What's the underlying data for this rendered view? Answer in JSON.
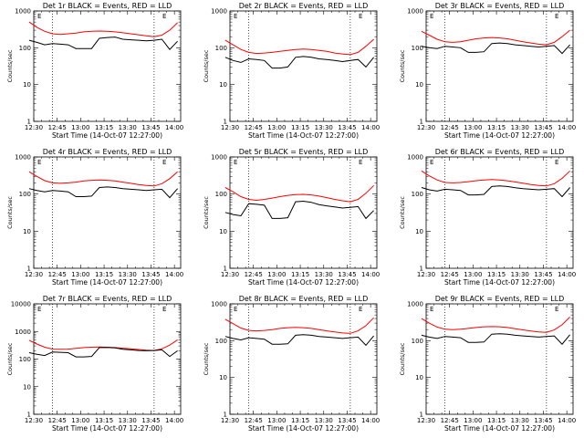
{
  "figure": {
    "event_color": "#000000",
    "lld_color": "#ff0000",
    "ylabel": "Counts/sec",
    "xlabel": "Start Time (14-Oct-07 12:27:00)",
    "xtick_labels": [
      "12:30",
      "12:45",
      "13:00",
      "13:15",
      "13:30",
      "13:45",
      "14:00"
    ],
    "ytick_labels": [
      "1",
      "10",
      "100",
      "1000"
    ],
    "marker_label": "E"
  },
  "chart_data": [
    {
      "type": "line",
      "title": "Det 1r BLACK = Events, RED = LLD",
      "xlabel": "Start Time (14-Oct-07 12:27:00)",
      "ylabel": "Counts/sec",
      "x_unit": "minutes after 12:27:00",
      "x": [
        0,
        5,
        10,
        15,
        20,
        25,
        30,
        35,
        40,
        45,
        50,
        55,
        60,
        65,
        70,
        75,
        80,
        85,
        90,
        95
      ],
      "xlim": [
        3,
        97
      ],
      "ylim": [
        1,
        1000
      ],
      "yscale": "log",
      "grid": false,
      "vlines_x": [
        15,
        80
      ],
      "series": [
        {
          "name": "LLD",
          "color": "#ff0000",
          "values": [
            500,
            360,
            280,
            240,
            230,
            240,
            250,
            270,
            280,
            285,
            280,
            270,
            255,
            240,
            225,
            210,
            200,
            220,
            300,
            480
          ]
        },
        {
          "name": "Events",
          "color": "#000000",
          "values": [
            160,
            140,
            120,
            130,
            125,
            120,
            95,
            95,
            95,
            180,
            190,
            195,
            170,
            165,
            160,
            155,
            160,
            170,
            90,
            150
          ]
        }
      ]
    },
    {
      "type": "line",
      "title": "Det 2r BLACK = Events, RED = LLD",
      "xlabel": "Start Time (14-Oct-07 12:27:00)",
      "ylabel": "Counts/sec",
      "x_unit": "minutes after 12:27:00",
      "x": [
        0,
        5,
        10,
        15,
        20,
        25,
        30,
        35,
        40,
        45,
        50,
        55,
        60,
        65,
        70,
        75,
        80,
        85,
        90,
        95
      ],
      "xlim": [
        3,
        97
      ],
      "ylim": [
        1,
        1000
      ],
      "yscale": "log",
      "grid": false,
      "vlines_x": [
        15,
        80
      ],
      "series": [
        {
          "name": "LLD",
          "color": "#ff0000",
          "values": [
            160,
            120,
            90,
            75,
            70,
            72,
            75,
            80,
            85,
            90,
            92,
            90,
            85,
            80,
            72,
            68,
            65,
            75,
            110,
            170
          ]
        },
        {
          "name": "Events",
          "color": "#000000",
          "values": [
            55,
            45,
            40,
            50,
            48,
            45,
            28,
            28,
            30,
            55,
            58,
            55,
            50,
            48,
            45,
            42,
            45,
            48,
            30,
            55
          ]
        }
      ]
    },
    {
      "type": "line",
      "title": "Det 3r BLACK = Events, RED = LLD",
      "xlabel": "Start Time (14-Oct-07 12:27:00)",
      "ylabel": "Counts/sec",
      "x_unit": "minutes after 12:27:00",
      "x": [
        0,
        5,
        10,
        15,
        20,
        25,
        30,
        35,
        40,
        45,
        50,
        55,
        60,
        65,
        70,
        75,
        80,
        85,
        90,
        95
      ],
      "xlim": [
        3,
        97
      ],
      "ylim": [
        1,
        1000
      ],
      "yscale": "log",
      "grid": false,
      "vlines_x": [
        15,
        80
      ],
      "series": [
        {
          "name": "LLD",
          "color": "#ff0000",
          "values": [
            280,
            220,
            170,
            145,
            140,
            145,
            160,
            175,
            185,
            190,
            185,
            175,
            160,
            145,
            135,
            125,
            120,
            140,
            200,
            300
          ]
        },
        {
          "name": "Events",
          "color": "#000000",
          "values": [
            110,
            100,
            95,
            110,
            105,
            100,
            75,
            75,
            78,
            130,
            135,
            130,
            120,
            115,
            110,
            105,
            110,
            115,
            70,
            120
          ]
        }
      ]
    },
    {
      "type": "line",
      "title": "Det 4r BLACK = Events, RED = LLD",
      "xlabel": "Start Time (14-Oct-07 12:27:00)",
      "ylabel": "Counts/sec",
      "x_unit": "minutes after 12:27:00",
      "x": [
        0,
        5,
        10,
        15,
        20,
        25,
        30,
        35,
        40,
        45,
        50,
        55,
        60,
        65,
        70,
        75,
        80,
        85,
        90,
        95
      ],
      "xlim": [
        3,
        97
      ],
      "ylim": [
        1,
        1000
      ],
      "yscale": "log",
      "grid": false,
      "vlines_x": [
        15,
        80
      ],
      "series": [
        {
          "name": "LLD",
          "color": "#ff0000",
          "values": [
            400,
            300,
            230,
            200,
            195,
            200,
            210,
            225,
            235,
            240,
            235,
            225,
            210,
            195,
            180,
            170,
            165,
            190,
            260,
            400
          ]
        },
        {
          "name": "Events",
          "color": "#000000",
          "values": [
            140,
            125,
            115,
            125,
            120,
            115,
            85,
            85,
            88,
            150,
            155,
            150,
            140,
            135,
            130,
            125,
            130,
            135,
            80,
            140
          ]
        }
      ]
    },
    {
      "type": "line",
      "title": "Det 5r BLACK = Events, RED = LLD",
      "xlabel": "Start Time (14-Oct-07 12:27:00)",
      "ylabel": "Counts/sec",
      "x_unit": "minutes after 12:27:00",
      "x": [
        0,
        5,
        10,
        15,
        20,
        25,
        30,
        35,
        40,
        45,
        50,
        55,
        60,
        65,
        70,
        75,
        80,
        85,
        90,
        95
      ],
      "xlim": [
        3,
        97
      ],
      "ylim": [
        1,
        1000
      ],
      "yscale": "log",
      "grid": false,
      "vlines_x": [
        15,
        80
      ],
      "series": [
        {
          "name": "LLD",
          "color": "#ff0000",
          "values": [
            150,
            115,
            85,
            72,
            68,
            72,
            78,
            85,
            92,
            97,
            98,
            95,
            88,
            80,
            72,
            66,
            62,
            72,
            105,
            170
          ]
        },
        {
          "name": "Events",
          "color": "#000000",
          "values": [
            32,
            28,
            26,
            55,
            53,
            50,
            22,
            22,
            23,
            62,
            64,
            60,
            52,
            48,
            45,
            42,
            44,
            46,
            22,
            36
          ]
        }
      ]
    },
    {
      "type": "line",
      "title": "Det 6r BLACK = Events, RED = LLD",
      "xlabel": "Start Time (14-Oct-07 12:27:00)",
      "ylabel": "Counts/sec",
      "x_unit": "minutes after 12:27:00",
      "x": [
        0,
        5,
        10,
        15,
        20,
        25,
        30,
        35,
        40,
        45,
        50,
        55,
        60,
        65,
        70,
        75,
        80,
        85,
        90,
        95
      ],
      "xlim": [
        3,
        97
      ],
      "ylim": [
        1,
        1000
      ],
      "yscale": "log",
      "grid": false,
      "vlines_x": [
        15,
        80
      ],
      "series": [
        {
          "name": "LLD",
          "color": "#ff0000",
          "values": [
            420,
            310,
            240,
            205,
            200,
            205,
            215,
            230,
            240,
            245,
            240,
            228,
            212,
            196,
            180,
            170,
            165,
            190,
            265,
            420
          ]
        },
        {
          "name": "Events",
          "color": "#000000",
          "values": [
            150,
            130,
            120,
            135,
            130,
            125,
            95,
            95,
            98,
            160,
            165,
            160,
            148,
            140,
            135,
            130,
            135,
            140,
            85,
            150
          ]
        }
      ]
    },
    {
      "type": "line",
      "title": "Det 7r BLACK = Events, RED = LLD",
      "xlabel": "Start Time (14-Oct-07 12:27:00)",
      "ylabel": "Counts/sec",
      "x_unit": "minutes after 12:27:00",
      "x": [
        0,
        5,
        10,
        15,
        20,
        25,
        30,
        35,
        40,
        45,
        50,
        55,
        60,
        65,
        70,
        75,
        80,
        85,
        90,
        95
      ],
      "xlim": [
        3,
        97
      ],
      "ylim": [
        1,
        10000
      ],
      "yscale": "log",
      "grid": false,
      "vlines_x": [
        15,
        80
      ],
      "series": [
        {
          "name": "LLD",
          "color": "#ff0000",
          "values": [
            480,
            350,
            270,
            230,
            225,
            230,
            245,
            260,
            270,
            275,
            270,
            260,
            248,
            235,
            222,
            210,
            205,
            235,
            320,
            500
          ]
        },
        {
          "name": "Events",
          "color": "#000000",
          "values": [
            170,
            150,
            135,
            180,
            175,
            170,
            120,
            120,
            125,
            260,
            265,
            255,
            225,
            215,
            205,
            200,
            205,
            215,
            125,
            200
          ]
        }
      ]
    },
    {
      "type": "line",
      "title": "Det 8r BLACK = Events, RED = LLD",
      "xlabel": "Start Time (14-Oct-07 12:27:00)",
      "ylabel": "Counts/sec",
      "x_unit": "minutes after 12:27:00",
      "x": [
        0,
        5,
        10,
        15,
        20,
        25,
        30,
        35,
        40,
        45,
        50,
        55,
        60,
        65,
        70,
        75,
        80,
        85,
        90,
        95
      ],
      "xlim": [
        3,
        97
      ],
      "ylim": [
        1,
        1000
      ],
      "yscale": "log",
      "grid": false,
      "vlines_x": [
        15,
        80
      ],
      "series": [
        {
          "name": "LLD",
          "color": "#ff0000",
          "values": [
            380,
            290,
            220,
            190,
            185,
            190,
            200,
            215,
            225,
            230,
            225,
            215,
            200,
            185,
            172,
            162,
            158,
            185,
            255,
            420
          ]
        },
        {
          "name": "Events",
          "color": "#000000",
          "values": [
            130,
            115,
            105,
            120,
            115,
            110,
            80,
            80,
            82,
            140,
            145,
            140,
            130,
            125,
            120,
            115,
            120,
            125,
            75,
            135
          ]
        }
      ]
    },
    {
      "type": "line",
      "title": "Det 9r BLACK = Events, RED = LLD",
      "xlabel": "Start Time (14-Oct-07 12:27:00)",
      "ylabel": "Counts/sec",
      "x_unit": "minutes after 12:27:00",
      "x": [
        0,
        5,
        10,
        15,
        20,
        25,
        30,
        35,
        40,
        45,
        50,
        55,
        60,
        65,
        70,
        75,
        80,
        85,
        90,
        95
      ],
      "xlim": [
        3,
        97
      ],
      "ylim": [
        1,
        1000
      ],
      "yscale": "log",
      "grid": false,
      "vlines_x": [
        15,
        80
      ],
      "series": [
        {
          "name": "LLD",
          "color": "#ff0000",
          "values": [
            400,
            300,
            235,
            205,
            200,
            205,
            215,
            228,
            238,
            242,
            238,
            228,
            212,
            196,
            182,
            172,
            168,
            195,
            270,
            440
          ]
        },
        {
          "name": "Events",
          "color": "#000000",
          "values": [
            140,
            125,
            115,
            130,
            125,
            120,
            90,
            90,
            92,
            150,
            155,
            150,
            140,
            135,
            130,
            125,
            130,
            135,
            80,
            145
          ]
        }
      ]
    }
  ]
}
